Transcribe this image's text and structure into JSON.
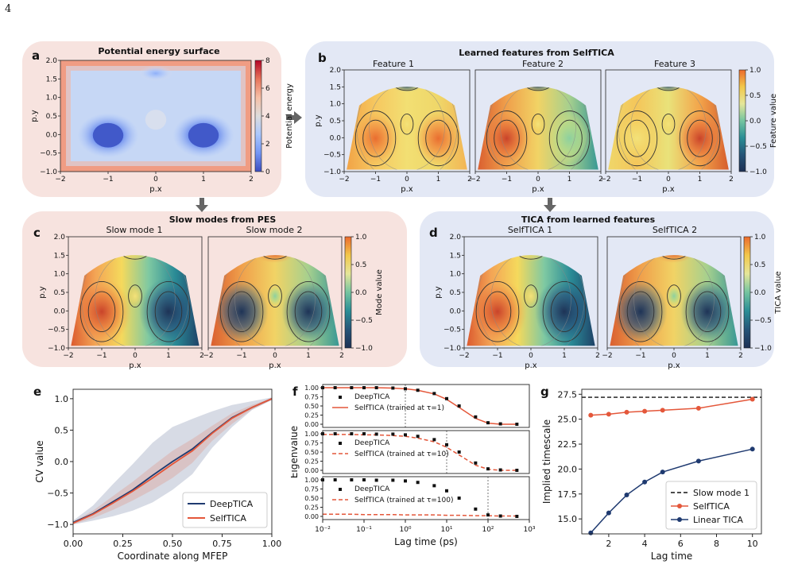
{
  "page_number": "4",
  "panels": {
    "a": {
      "label": "a",
      "title": "Potential energy surface",
      "xlabel": "p.x",
      "ylabel": "p.y",
      "colorbar_label": "Potential energy",
      "colorbar_ticks": [
        "8",
        "6",
        "4",
        "2",
        "0"
      ]
    },
    "b": {
      "label": "b",
      "title": "Learned features from SelfTICA",
      "subtitles": [
        "Feature 1",
        "Feature 2",
        "Feature 3"
      ],
      "xlabel": "p.x",
      "ylabel": "p.y",
      "colorbar_label": "Feature value",
      "colorbar_ticks": [
        "1.0",
        "0.5",
        "0.0",
        "−0.5",
        "−1.0"
      ]
    },
    "c": {
      "label": "c",
      "title": "Slow modes from PES",
      "subtitles": [
        "Slow mode 1",
        "Slow mode 2"
      ],
      "xlabel": "p.x",
      "ylabel": "p.y",
      "colorbar_label": "Mode value",
      "colorbar_ticks": [
        "1.0",
        "0.5",
        "0.0",
        "−0.5",
        "−1.0"
      ]
    },
    "d": {
      "label": "d",
      "title": "TICA from learned features",
      "subtitles": [
        "SelfTICA 1",
        "SelfTICA 2"
      ],
      "xlabel": "p.x",
      "ylabel": "p.y",
      "colorbar_label": "TICA value",
      "colorbar_ticks": [
        "1.0",
        "0.5",
        "0.0",
        "−0.5",
        "−1.0"
      ]
    },
    "e": {
      "label": "e"
    },
    "f": {
      "label": "f"
    },
    "g": {
      "label": "g"
    }
  },
  "map_ticks": {
    "x": [
      "−2",
      "−1",
      "0",
      "1",
      "2"
    ],
    "y": [
      "2.0",
      "1.5",
      "1.0",
      "0.5",
      "0.0",
      "−0.5",
      "−1.0"
    ]
  },
  "colors": {
    "deep": "#1f3a70",
    "self": "#e4573a",
    "pink_bg": "#f7e3df",
    "blue_bg": "#e3e8f5"
  },
  "chart_data": [
    {
      "id": "e",
      "type": "line",
      "xlabel": "Coordinate along MFEP",
      "ylabel": "CV value",
      "xlim": [
        0,
        1
      ],
      "ylim": [
        -1.15,
        1.15
      ],
      "xticks": [
        "0.00",
        "0.25",
        "0.50",
        "0.75",
        "1.00"
      ],
      "yticks": [
        "1.0",
        "0.5",
        "0.0",
        "−0.5",
        "−1.0"
      ],
      "x": [
        0,
        0.1,
        0.2,
        0.3,
        0.4,
        0.5,
        0.6,
        0.7,
        0.8,
        0.9,
        1.0
      ],
      "series": [
        {
          "name": "DeepTICA",
          "values": [
            -0.97,
            -0.83,
            -0.64,
            -0.45,
            -0.22,
            0.0,
            0.2,
            0.46,
            0.7,
            0.86,
            1.0
          ],
          "band_low": [
            -1.0,
            -0.94,
            -0.87,
            -0.78,
            -0.65,
            -0.45,
            -0.2,
            0.22,
            0.55,
            0.82,
            0.98
          ],
          "band_high": [
            -0.94,
            -0.7,
            -0.36,
            -0.04,
            0.3,
            0.55,
            0.68,
            0.8,
            0.9,
            0.96,
            1.02
          ]
        },
        {
          "name": "SelfTICA",
          "values": [
            -0.98,
            -0.84,
            -0.66,
            -0.47,
            -0.26,
            -0.04,
            0.17,
            0.45,
            0.69,
            0.86,
            1.0
          ],
          "band_low": [
            -1.0,
            -0.9,
            -0.77,
            -0.62,
            -0.45,
            -0.26,
            -0.02,
            0.33,
            0.6,
            0.83,
            0.98
          ],
          "band_high": [
            -0.96,
            -0.78,
            -0.55,
            -0.32,
            -0.07,
            0.17,
            0.36,
            0.57,
            0.77,
            0.9,
            1.01
          ]
        }
      ],
      "legend": "lower-right"
    },
    {
      "id": "f",
      "type": "line",
      "xlabel": "Lag time (ps)",
      "ylabel": "Eigenvalue",
      "xscale": "log",
      "xlim": [
        0.01,
        1000
      ],
      "ylim": [
        0,
        1
      ],
      "xticks": [
        "10⁻²",
        "10⁻¹",
        "10⁰",
        "10¹",
        "10²",
        "10³"
      ],
      "yticks": [
        "1.00",
        "0.75",
        "0.50",
        "0.25",
        "0.00"
      ],
      "subplots": [
        {
          "legend": [
            "DeepTICA",
            "SelfTICA (trained at τ=1)"
          ],
          "vline": 1,
          "x": [
            0.01,
            0.02,
            0.05,
            0.1,
            0.2,
            0.5,
            1,
            2,
            5,
            10,
            20,
            50,
            100,
            200,
            500
          ],
          "deep": [
            1.0,
            1.0,
            1.0,
            1.0,
            1.0,
            0.99,
            0.97,
            0.93,
            0.84,
            0.7,
            0.5,
            0.2,
            0.04,
            0.01,
            0.0
          ],
          "self_line": [
            1.0,
            1.0,
            1.0,
            1.0,
            1.0,
            0.99,
            0.97,
            0.93,
            0.83,
            0.68,
            0.46,
            0.16,
            0.03,
            0.0,
            0.0
          ]
        },
        {
          "legend": [
            "DeepTICA",
            "SelfTICA (trained at τ=10)"
          ],
          "vline": 10,
          "x": [
            0.01,
            0.02,
            0.05,
            0.1,
            0.2,
            0.5,
            1,
            2,
            5,
            10,
            20,
            50,
            100,
            200,
            500
          ],
          "deep": [
            1.0,
            1.0,
            1.0,
            1.0,
            0.99,
            0.99,
            0.97,
            0.93,
            0.84,
            0.7,
            0.5,
            0.2,
            0.04,
            0.01,
            0.0
          ],
          "self_line": [
            0.98,
            0.98,
            0.98,
            0.97,
            0.97,
            0.95,
            0.93,
            0.88,
            0.78,
            0.63,
            0.42,
            0.14,
            0.03,
            0.0,
            0.0
          ]
        },
        {
          "legend": [
            "DeepTICA",
            "SelfTICA (trained at τ=100)"
          ],
          "vline": 100,
          "x": [
            0.01,
            0.02,
            0.05,
            0.1,
            0.2,
            0.5,
            1,
            2,
            5,
            10,
            20,
            50,
            100,
            200,
            500
          ],
          "deep": [
            1.0,
            1.0,
            1.0,
            1.0,
            0.99,
            0.99,
            0.97,
            0.93,
            0.84,
            0.7,
            0.5,
            0.2,
            0.04,
            0.01,
            0.0
          ],
          "self_line": [
            0.06,
            0.06,
            0.06,
            0.05,
            0.05,
            0.05,
            0.04,
            0.04,
            0.04,
            0.03,
            0.03,
            0.02,
            0.02,
            0.01,
            0.01
          ]
        }
      ]
    },
    {
      "id": "g",
      "type": "line",
      "xlabel": "Lag time",
      "ylabel": "Implied timescale",
      "xlim": [
        0.5,
        10.5
      ],
      "ylim": [
        13.5,
        28.0
      ],
      "xticks": [
        "2",
        "4",
        "6",
        "8",
        "10"
      ],
      "yticks": [
        "27.5",
        "25.0",
        "22.5",
        "20.0",
        "17.5",
        "15.0"
      ],
      "x": [
        1,
        2,
        3,
        4,
        5,
        7,
        10
      ],
      "hline": {
        "name": "Slow mode 1",
        "value": 27.2
      },
      "series": [
        {
          "name": "SelfTICA",
          "values": [
            25.4,
            25.5,
            25.7,
            25.8,
            25.9,
            26.1,
            27.0
          ]
        },
        {
          "name": "Linear TICA",
          "values": [
            13.6,
            15.6,
            17.4,
            18.7,
            19.7,
            20.8,
            22.0
          ]
        }
      ],
      "legend": "lower-right"
    }
  ]
}
